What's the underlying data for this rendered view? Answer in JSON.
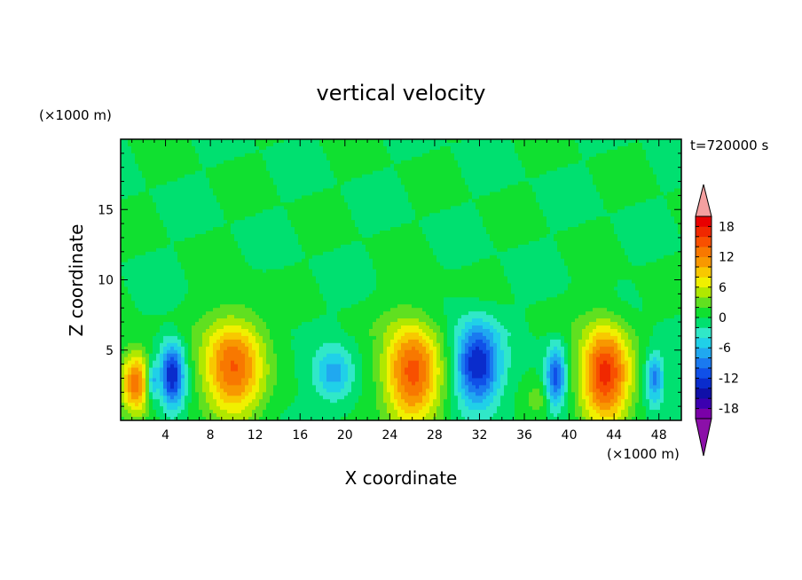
{
  "chart_data": {
    "type": "heatmap",
    "title": "vertical velocity",
    "xlabel": "X coordinate",
    "ylabel": "Z coordinate",
    "x_unit": "(×1000 m)",
    "y_unit": "(×1000 m)",
    "time_label": "t=720000 s",
    "xlim": [
      0,
      50
    ],
    "ylim": [
      0,
      20
    ],
    "x_ticks": [
      4,
      8,
      12,
      16,
      20,
      24,
      28,
      32,
      36,
      40,
      44,
      48
    ],
    "y_ticks": [
      5,
      10,
      15
    ],
    "colorbar": {
      "levels": [
        -20,
        -18,
        -16,
        -14,
        -12,
        -10,
        -8,
        -6,
        -4,
        -2,
        0,
        2,
        4,
        6,
        8,
        10,
        12,
        14,
        16,
        18,
        20
      ],
      "tick_labels": [
        "18",
        "12",
        "6",
        "0",
        "-6",
        "-12",
        "-18"
      ],
      "tick_values": [
        18,
        12,
        6,
        0,
        -6,
        -12,
        -18
      ],
      "over_color": "#f4a0a0",
      "under_color": "#8b10a8",
      "colors": [
        "#7a00a8",
        "#3c00b0",
        "#1010a8",
        "#0a2ccc",
        "#1050e8",
        "#1a7af0",
        "#20a8f0",
        "#20d0e8",
        "#30e8c8",
        "#00e070",
        "#10e030",
        "#60e020",
        "#b0e800",
        "#f0f000",
        "#f8c800",
        "#f89800",
        "#f87800",
        "#f85000",
        "#f02800",
        "#e80000"
      ]
    },
    "cells": [
      {
        "x": 1.3,
        "z": 2.7,
        "w": 13,
        "sx": 1.3,
        "sz": 2.2
      },
      {
        "x": 2.8,
        "z": 2.8,
        "w": -8,
        "sx": 0.5,
        "sz": 1.4
      },
      {
        "x": 4.6,
        "z": 3.2,
        "w": -14,
        "sx": 1.1,
        "sz": 2.3
      },
      {
        "x": 10.0,
        "z": 3.8,
        "w": 14,
        "sx": 2.7,
        "sz": 3.6
      },
      {
        "x": 19.0,
        "z": 3.3,
        "w": -7,
        "sx": 1.7,
        "sz": 1.9
      },
      {
        "x": 26.0,
        "z": 3.4,
        "w": 15,
        "sx": 2.5,
        "sz": 3.7
      },
      {
        "x": 31.8,
        "z": 4.0,
        "w": -14,
        "sx": 2.0,
        "sz": 2.9
      },
      {
        "x": 37.2,
        "z": 1.5,
        "w": 3,
        "sx": 1.0,
        "sz": 1.2
      },
      {
        "x": 38.8,
        "z": 3.1,
        "w": -11,
        "sx": 0.9,
        "sz": 2.2
      },
      {
        "x": 43.2,
        "z": 3.3,
        "w": 17,
        "sx": 2.2,
        "sz": 3.5
      },
      {
        "x": 47.6,
        "z": 3.0,
        "w": -9,
        "sx": 0.8,
        "sz": 1.8
      }
    ]
  }
}
